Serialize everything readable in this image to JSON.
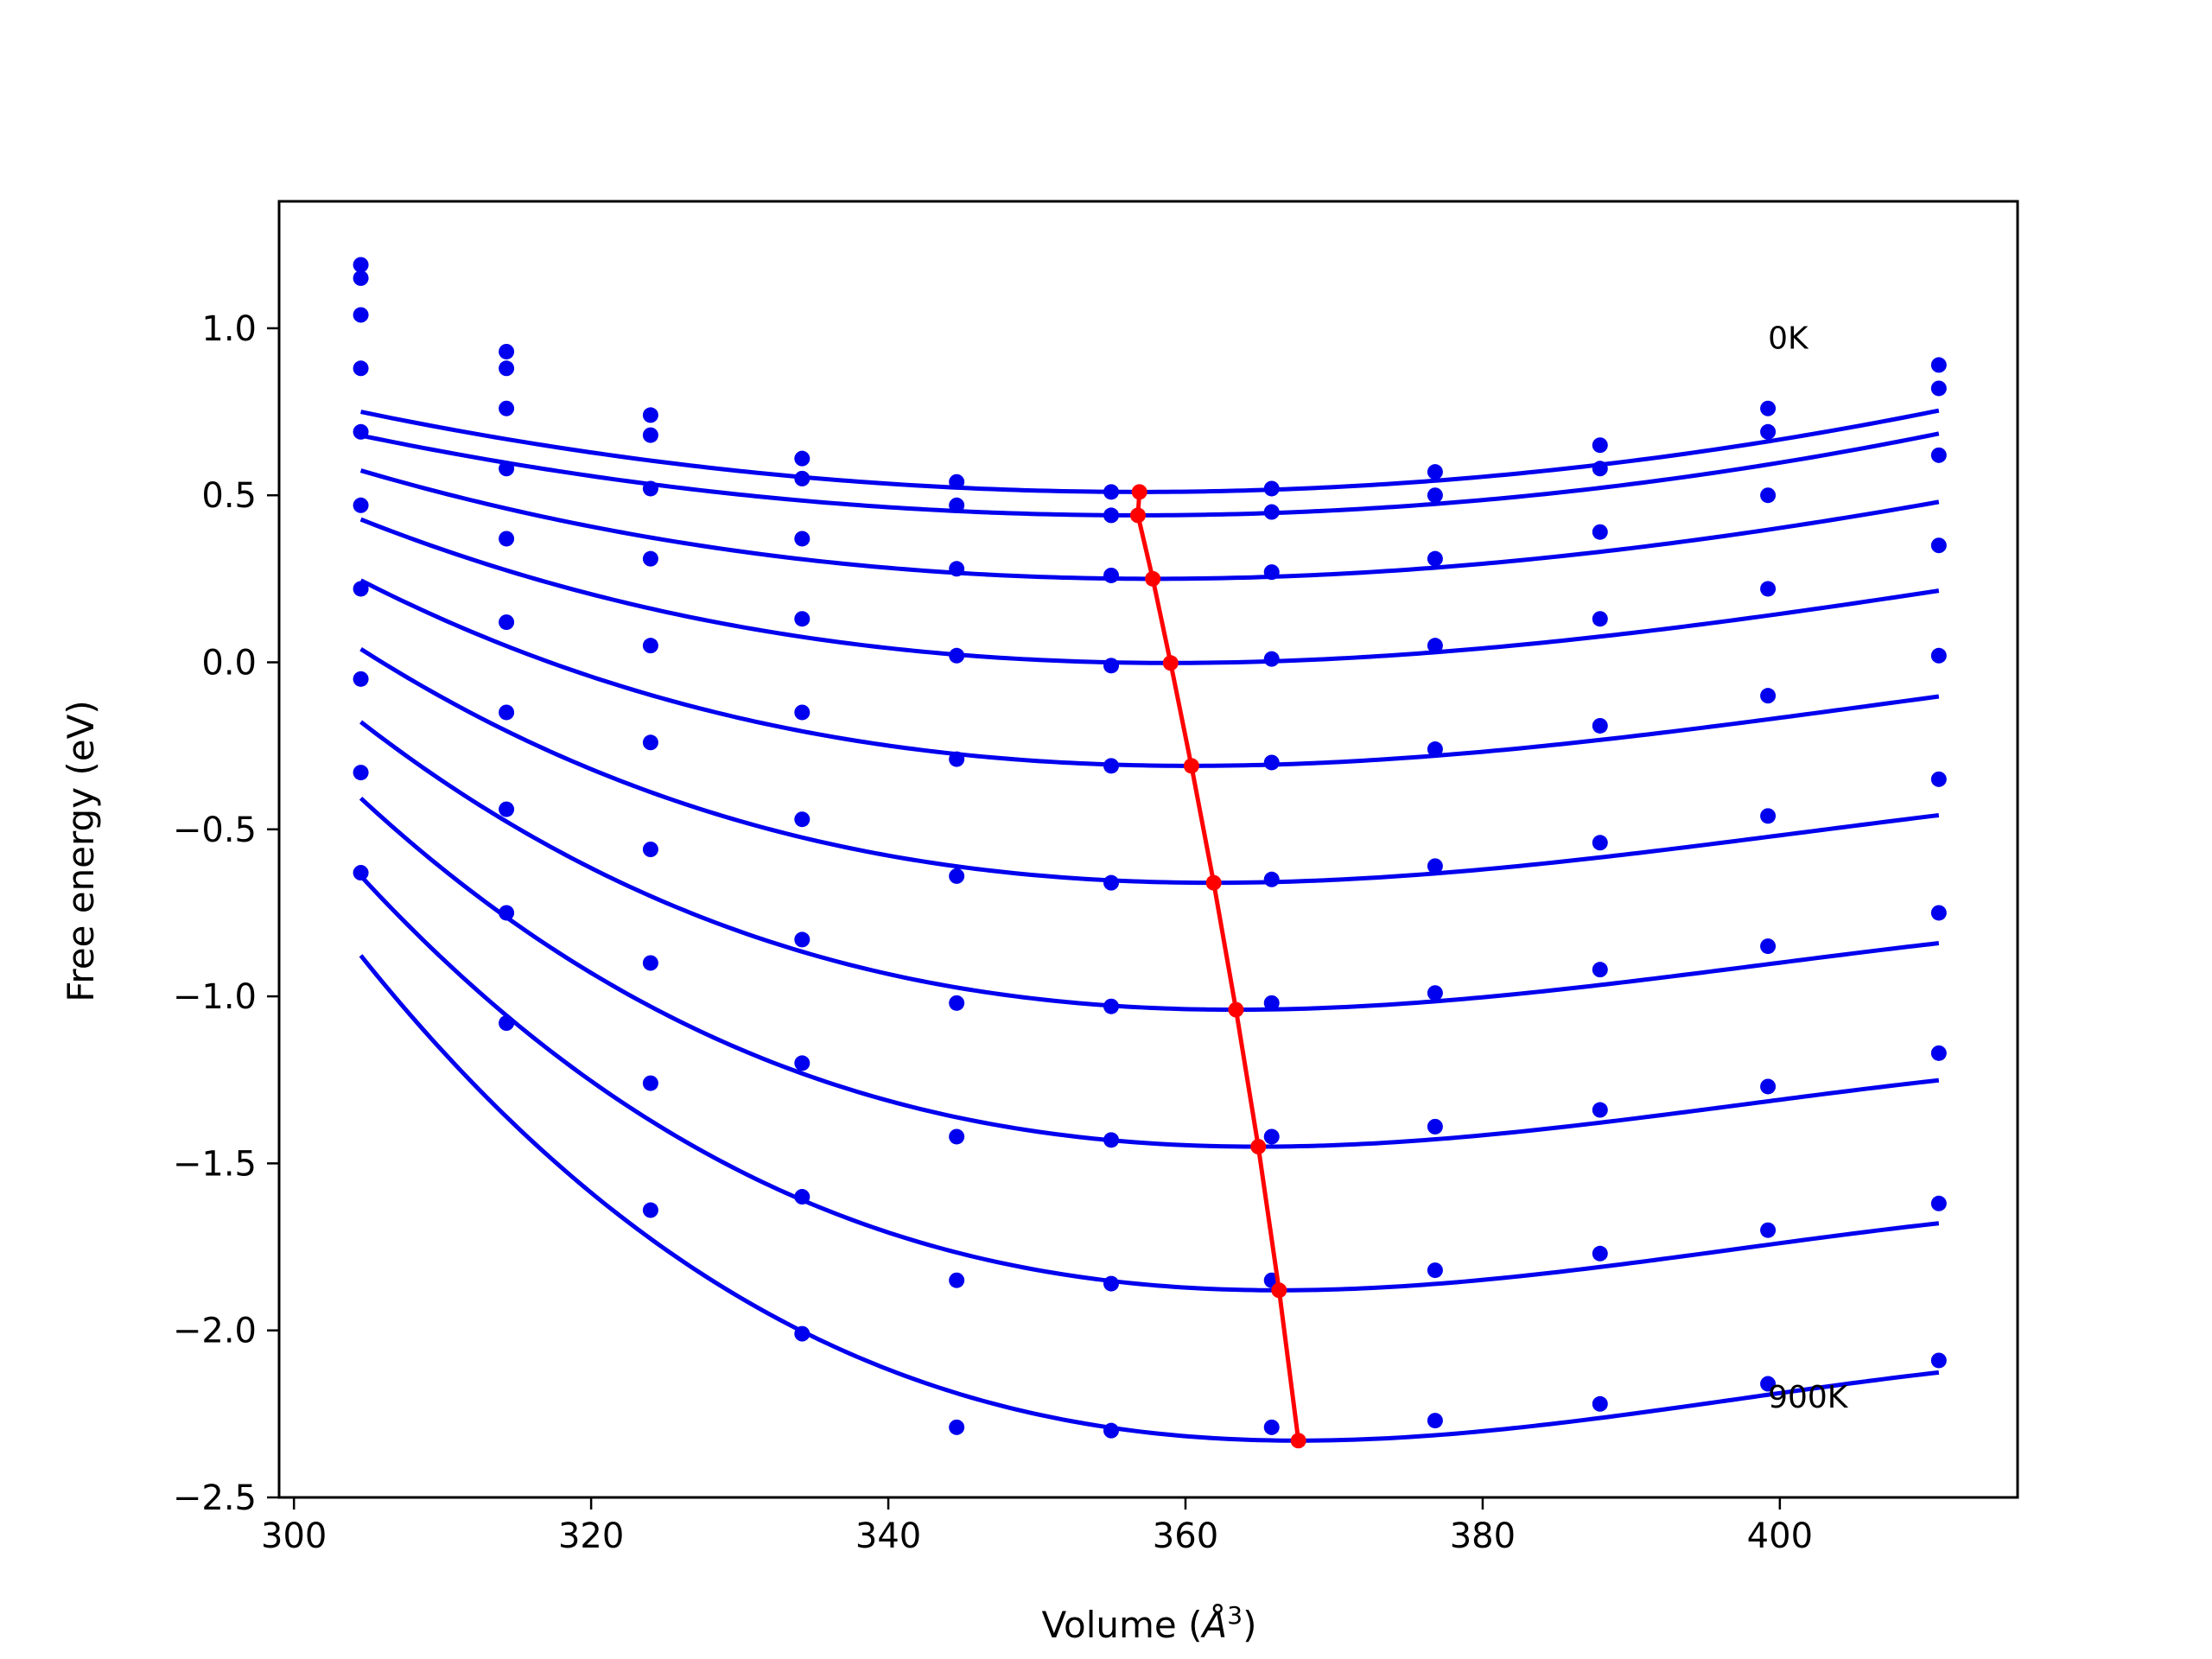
{
  "chart_data": {
    "type": "line",
    "title": "",
    "xlabel": "Volume (",
    "xlabel_symbol": "Å",
    "xlabel_exponent": "3",
    "xlabel_close": ")",
    "ylabel": "Free energy (eV)",
    "xlim": [
      299,
      416
    ],
    "ylim": [
      -2.5,
      1.38
    ],
    "xticks": [
      300,
      320,
      340,
      360,
      380,
      400
    ],
    "yticks": [
      -2.5,
      -2.0,
      -1.5,
      -1.0,
      -0.5,
      0.0,
      0.5,
      1.0
    ],
    "ytick_labels": [
      "−2.5",
      "−2.0",
      "−1.5",
      "−1.0",
      "−0.5",
      "0.0",
      "0.5",
      "1.0"
    ],
    "xtick_labels": [
      "300",
      "320",
      "340",
      "360",
      "380",
      "400"
    ],
    "grid": false,
    "annotations": [
      {
        "text": "0K",
        "x": 399.2,
        "y": 0.97
      },
      {
        "text": "900K",
        "x": 399.2,
        "y": -2.2
      }
    ],
    "x": [
      304.5,
      314.3,
      324.0,
      334.2,
      344.6,
      355.0,
      365.8,
      376.8,
      387.9,
      399.2,
      410.7
    ],
    "curve_color": "#0000ee",
    "point_color": "#0000ee",
    "min_line_color": "#ff0000",
    "series": [
      {
        "points": [
          1.19,
          0.93,
          0.74,
          0.61,
          0.54,
          0.51,
          0.52,
          0.57,
          0.65,
          0.76,
          0.89
        ],
        "fit": {
          "vmin": 356.9,
          "fmin": 0.51,
          "a": 8.58e-05,
          "b": 3e-08
        }
      },
      {
        "points": [
          1.15,
          0.88,
          0.68,
          0.55,
          0.47,
          0.44,
          0.45,
          0.5,
          0.58,
          0.69,
          0.82
        ],
        "fit": {
          "vmin": 356.8,
          "fmin": 0.44,
          "a": 8.58e-05,
          "b": 3e-08
        }
      },
      {
        "points": [
          1.04,
          0.76,
          0.52,
          0.37,
          0.28,
          0.26,
          0.27,
          0.31,
          0.39,
          0.5,
          0.62
        ],
        "fit": {
          "vmin": 357.8,
          "fmin": 0.25,
          "a": 9.81e-05,
          "b": 3e-07
        }
      },
      {
        "points": [
          0.88,
          0.58,
          0.31,
          0.13,
          0.02,
          -0.01,
          0.01,
          0.05,
          0.13,
          0.22,
          0.35
        ],
        "fit": {
          "vmin": 359.0,
          "fmin": -0.002,
          "a": 0.000112,
          "b": 6e-07
        }
      },
      {
        "points": [
          0.69,
          0.37,
          0.05,
          -0.15,
          -0.29,
          -0.31,
          -0.3,
          -0.26,
          -0.19,
          -0.1,
          0.02
        ],
        "fit": {
          "vmin": 360.4,
          "fmin": -0.31,
          "a": 0.0001274,
          "b": 9e-07
        }
      },
      {
        "points": [
          0.47,
          0.12,
          -0.24,
          -0.47,
          -0.64,
          -0.66,
          -0.65,
          -0.61,
          -0.54,
          -0.46,
          -0.35
        ],
        "fit": {
          "vmin": 361.9,
          "fmin": -0.66,
          "a": 0.0001435,
          "b": 1.2e-06
        }
      },
      {
        "points": [
          0.22,
          -0.15,
          -0.56,
          -0.83,
          -1.02,
          -1.03,
          -1.02,
          -0.99,
          -0.92,
          -0.85,
          -0.75
        ],
        "fit": {
          "vmin": 363.4,
          "fmin": -1.04,
          "a": 0.00016,
          "b": 1.5e-06
        }
      },
      {
        "points": [
          -0.05,
          -0.44,
          -0.9,
          -1.2,
          -1.42,
          -1.43,
          -1.42,
          -1.39,
          -1.34,
          -1.27,
          -1.17
        ],
        "fit": {
          "vmin": 364.9,
          "fmin": -1.45,
          "a": 0.0001772,
          "b": 1.8e-06
        }
      },
      {
        "points": [
          -0.33,
          -0.75,
          -1.26,
          -1.6,
          -1.85,
          -1.86,
          -1.85,
          -1.82,
          -1.77,
          -1.7,
          -1.62
        ],
        "fit": {
          "vmin": 366.3,
          "fmin": -1.88,
          "a": 0.000195,
          "b": 2.1e-06
        }
      },
      {
        "points": [
          -0.63,
          -1.08,
          -1.64,
          -2.01,
          -2.29,
          -2.3,
          -2.29,
          -2.27,
          -2.22,
          -2.16,
          -2.09
        ],
        "fit": {
          "vmin": 367.6,
          "fmin": -2.33,
          "a": 0.0002133,
          "b": 2.4e-06
        }
      }
    ],
    "minima": {
      "x": [
        356.9,
        356.8,
        357.8,
        359.0,
        360.4,
        361.9,
        363.4,
        364.9,
        366.3,
        367.6
      ],
      "y": [
        0.51,
        0.44,
        0.25,
        -0.002,
        -0.31,
        -0.66,
        -1.04,
        -1.45,
        -1.88,
        -2.33
      ]
    }
  }
}
